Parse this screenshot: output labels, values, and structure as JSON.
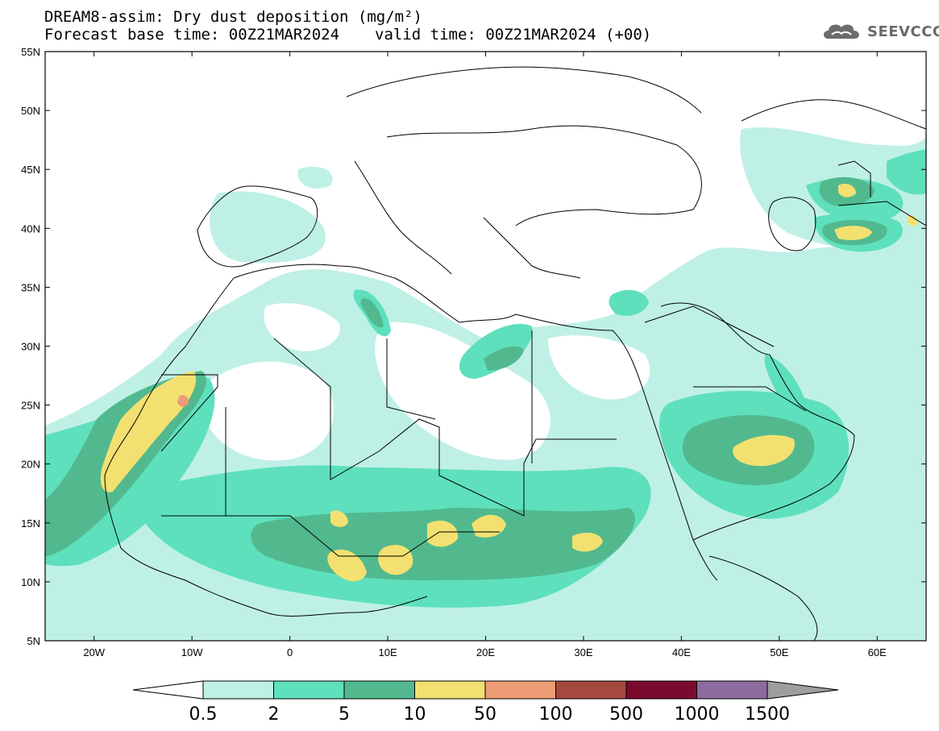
{
  "header": {
    "title": "DREAM8-assim: Dry dust deposition (mg/m²)",
    "base_time": "Forecast base time: 00Z21MAR2024",
    "valid_time": "valid time: 00Z21MAR2024 (+00)"
  },
  "logo": {
    "text": "SEEVCCC",
    "icon": "cloud-icon"
  },
  "map": {
    "lon_range": [
      -25,
      65
    ],
    "lat_range": [
      5,
      55
    ],
    "lon_ticks": [
      {
        "value": -20,
        "label": "20W"
      },
      {
        "value": -10,
        "label": "10W"
      },
      {
        "value": 0,
        "label": "0"
      },
      {
        "value": 10,
        "label": "10E"
      },
      {
        "value": 20,
        "label": "20E"
      },
      {
        "value": 30,
        "label": "30E"
      },
      {
        "value": 40,
        "label": "40E"
      },
      {
        "value": 50,
        "label": "50E"
      },
      {
        "value": 60,
        "label": "60E"
      }
    ],
    "lat_ticks": [
      {
        "value": 5,
        "label": "5N"
      },
      {
        "value": 10,
        "label": "10N"
      },
      {
        "value": 15,
        "label": "15N"
      },
      {
        "value": 20,
        "label": "20N"
      },
      {
        "value": 25,
        "label": "25N"
      },
      {
        "value": 30,
        "label": "30N"
      },
      {
        "value": 35,
        "label": "35N"
      },
      {
        "value": 40,
        "label": "40N"
      },
      {
        "value": 45,
        "label": "45N"
      },
      {
        "value": 50,
        "label": "50N"
      },
      {
        "value": 55,
        "label": "55N"
      }
    ]
  },
  "colorbar": {
    "colors": [
      "#bff0e6",
      "#5ee0bd",
      "#52b98e",
      "#f2e170",
      "#ed9c75",
      "#a5483e",
      "#7a0a2e",
      "#8c6b9e"
    ],
    "under_color": "#ffffff",
    "over_color": "#9e9e9e",
    "labels": [
      "0.5",
      "2",
      "5",
      "10",
      "50",
      "100",
      "500",
      "1000",
      "1500"
    ]
  }
}
